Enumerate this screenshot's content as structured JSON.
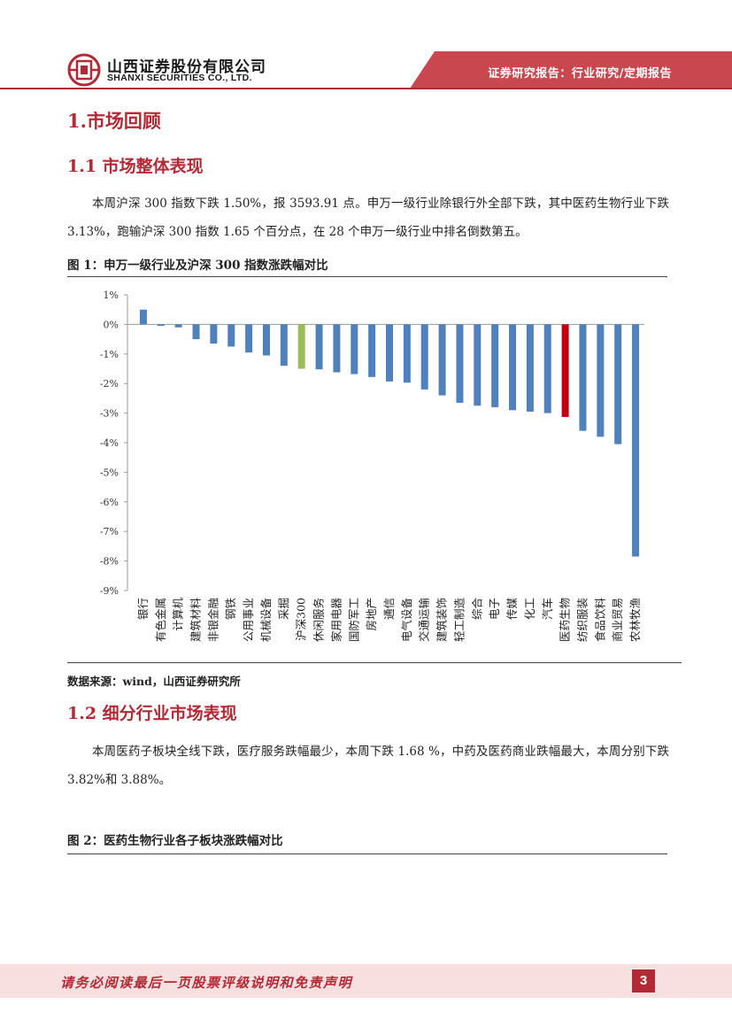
{
  "header": {
    "company_cn": "山西证券股份有限公司",
    "company_en": "SHANXI SECURITIES CO., LTD.",
    "report_type": "证券研究报告：行业研究/定期报告",
    "brand_color": "#b22a35"
  },
  "section1": {
    "title": "1.市场回顾"
  },
  "section1_1": {
    "title": "1.1 市场整体表现",
    "paragraph": "本周沪深 300 指数下跌 1.50%，报 3593.91 点。申万一级行业除银行外全部下跌，其中医药生物行业下跌 3.13%，跑输沪深 300 指数 1.65 个百分点，在 28 个申万一级行业中排名倒数第五。",
    "figure_title": "图 1：申万一级行业及沪深 300 指数涨跌幅对比",
    "source": "数据来源：wind，山西证券研究所"
  },
  "chart_data": {
    "type": "bar",
    "title": "申万一级行业及沪深 300 指数涨跌幅对比",
    "ylabel": "",
    "xlabel": "",
    "ylim": [
      -9,
      1
    ],
    "ytick_labels": [
      "1%",
      "0%",
      "-1%",
      "-2%",
      "-3%",
      "-4%",
      "-5%",
      "-6%",
      "-7%",
      "-8%",
      "-9%"
    ],
    "categories": [
      "银行",
      "有色金属",
      "计算机",
      "建筑材料",
      "非银金融",
      "钢铁",
      "公用事业",
      "机械设备",
      "采掘",
      "沪深300",
      "休闲服务",
      "家用电器",
      "国防军工",
      "房地产",
      "通信",
      "电气设备",
      "交通运输",
      "建筑装饰",
      "轻工制造",
      "综合",
      "电子",
      "传媒",
      "化工",
      "汽车",
      "医药生物",
      "纺织服装",
      "食品饮料",
      "商业贸易",
      "农林牧渔"
    ],
    "values": [
      0.5,
      -0.05,
      -0.1,
      -0.5,
      -0.65,
      -0.75,
      -0.95,
      -1.05,
      -1.4,
      -1.5,
      -1.52,
      -1.62,
      -1.68,
      -1.78,
      -1.93,
      -1.97,
      -2.2,
      -2.4,
      -2.65,
      -2.75,
      -2.8,
      -2.9,
      -2.95,
      -3.0,
      -3.13,
      -3.6,
      -3.8,
      -4.05,
      -7.85
    ],
    "colors": {
      "default": "#4f81bd",
      "index": "#9bbb59",
      "highlight": "#c0000f"
    },
    "highlight_categories": {
      "index": "沪深300",
      "highlight": "医药生物"
    }
  },
  "section1_2": {
    "title": "1.2 细分行业市场表现",
    "paragraph": "本周医药子板块全线下跌，医疗服务跌幅最少，本周下跌 1.68 %，中药及医药商业跌幅最大，本周分别下跌 3.82%和 3.88%。",
    "figure_title": "图 2：医药生物行业各子板块涨跌幅对比"
  },
  "footer": {
    "disclaimer": "请务必阅读最后一页股票评级说明和免责声明",
    "page_number": "3"
  }
}
